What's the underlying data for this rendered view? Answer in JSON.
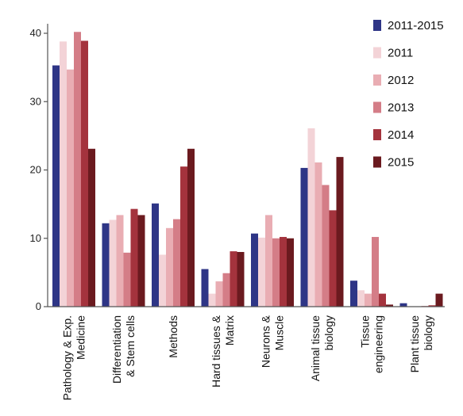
{
  "chart_data": {
    "type": "bar",
    "title": "",
    "xlabel": "",
    "ylabel": "",
    "ylim": [
      0,
      42
    ],
    "yticks": [
      0,
      10,
      20,
      30,
      40
    ],
    "grid": false,
    "legend_position": "top-right",
    "categories": [
      [
        "Pathology & Exp.",
        "Medicine"
      ],
      [
        "Differentiation",
        "& Stem cells"
      ],
      [
        "Methods"
      ],
      [
        "Hard tissues &",
        "Matrix"
      ],
      [
        "Neurons &",
        "Muscle"
      ],
      [
        "Animal tissue",
        "biology"
      ],
      [
        "Tissue",
        "engineering"
      ],
      [
        "Plant tissue",
        "biology"
      ]
    ],
    "series": [
      {
        "name": "2011-2015",
        "color": "#2e3586",
        "values": [
          35.3,
          12.2,
          15.1,
          5.5,
          10.7,
          20.3,
          3.8,
          0.5
        ]
      },
      {
        "name": "2011",
        "color": "#f3d3d7",
        "values": [
          38.8,
          12.7,
          7.6,
          1.9,
          10.1,
          26.1,
          2.4,
          0.0
        ]
      },
      {
        "name": "2012",
        "color": "#e9adb3",
        "values": [
          34.7,
          13.4,
          11.5,
          3.7,
          13.4,
          21.1,
          1.9,
          0.0
        ]
      },
      {
        "name": "2013",
        "color": "#d47d87",
        "values": [
          40.2,
          7.9,
          12.8,
          4.9,
          10.0,
          17.8,
          10.2,
          0.1
        ]
      },
      {
        "name": "2014",
        "color": "#a4333d",
        "values": [
          38.9,
          14.3,
          20.5,
          8.1,
          10.2,
          14.1,
          1.9,
          0.2
        ]
      },
      {
        "name": "2015",
        "color": "#6b1a1f",
        "values": [
          23.1,
          13.4,
          23.1,
          8.0,
          10.0,
          21.9,
          0.3,
          1.9
        ]
      }
    ]
  }
}
